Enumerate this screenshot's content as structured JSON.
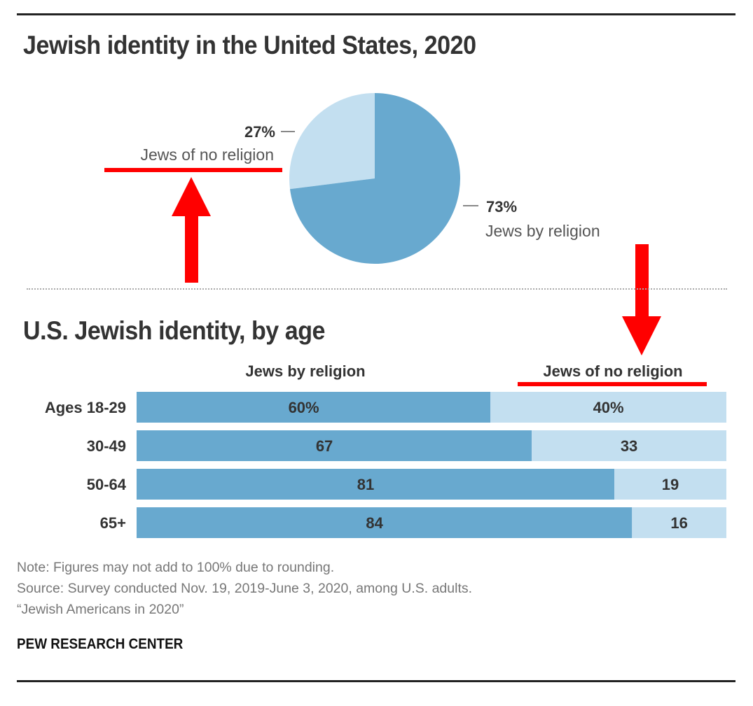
{
  "colors": {
    "religion": "#68a9cf",
    "no_religion": "#c3dff0",
    "annotation": "#ff0000",
    "text": "#333333"
  },
  "chart_data": [
    {
      "type": "pie",
      "title": "Jewish identity in the United States, 2020",
      "slices": [
        {
          "label": "Jews of no religion",
          "value": 27,
          "display": "27%",
          "color": "#c3dff0"
        },
        {
          "label": "Jews by religion",
          "value": 73,
          "display": "73%",
          "color": "#68a9cf"
        }
      ]
    },
    {
      "type": "bar",
      "orientation": "horizontal",
      "stacked": true,
      "title": "U.S. Jewish identity, by age",
      "categories": [
        "Ages 18-29",
        "30-49",
        "50-64",
        "65+"
      ],
      "series": [
        {
          "name": "Jews by religion",
          "values": [
            60,
            67,
            81,
            84
          ],
          "labels": [
            "60%",
            "67",
            "81",
            "84"
          ],
          "color": "#68a9cf"
        },
        {
          "name": "Jews of no religion",
          "values": [
            40,
            33,
            19,
            16
          ],
          "labels": [
            "40%",
            "33",
            "19",
            "16"
          ],
          "color": "#c3dff0"
        }
      ],
      "xlim": [
        0,
        100
      ],
      "grid": false
    }
  ],
  "annotations": {
    "underline_pie_label": "Jews of no religion",
    "underline_column_header": "Jews of no religion",
    "arrows": [
      "up-arrow",
      "down-arrow"
    ]
  },
  "footer": {
    "note": "Note: Figures may not add to 100% due to rounding.",
    "source": "Source: Survey conducted Nov. 19, 2019-June 3, 2020, among U.S. adults.",
    "report": "“Jewish Americans in 2020”",
    "brand": "PEW RESEARCH CENTER"
  }
}
